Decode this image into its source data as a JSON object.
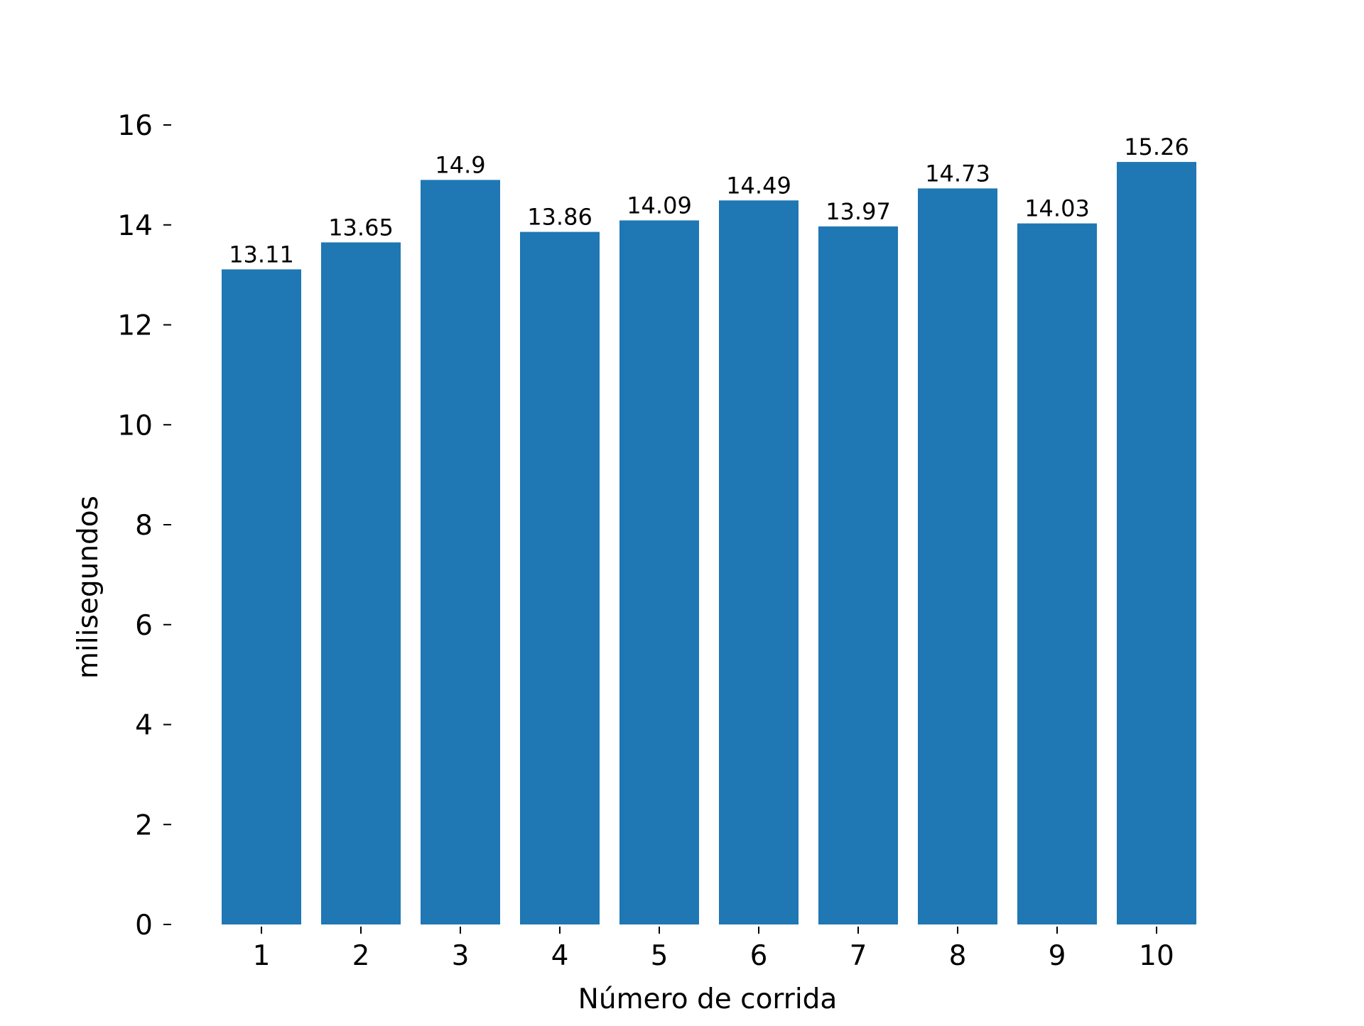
{
  "chart_data": {
    "type": "bar",
    "title": "",
    "xlabel": "Número de corrida",
    "ylabel": "milisegundos",
    "categories": [
      "1",
      "2",
      "3",
      "4",
      "5",
      "6",
      "7",
      "8",
      "9",
      "10"
    ],
    "values": [
      13.11,
      13.65,
      14.9,
      13.86,
      14.09,
      14.49,
      13.97,
      14.73,
      14.03,
      15.26
    ],
    "value_labels": [
      "13.11",
      "13.65",
      "14.9",
      "13.86",
      "14.09",
      "14.49",
      "13.97",
      "14.73",
      "14.03",
      "15.26"
    ],
    "ylim": [
      0,
      16
    ],
    "yticks": [
      0,
      2,
      4,
      6,
      8,
      10,
      12,
      14,
      16
    ],
    "grid": false,
    "legend": false,
    "bar_color": "#1f77b4"
  }
}
